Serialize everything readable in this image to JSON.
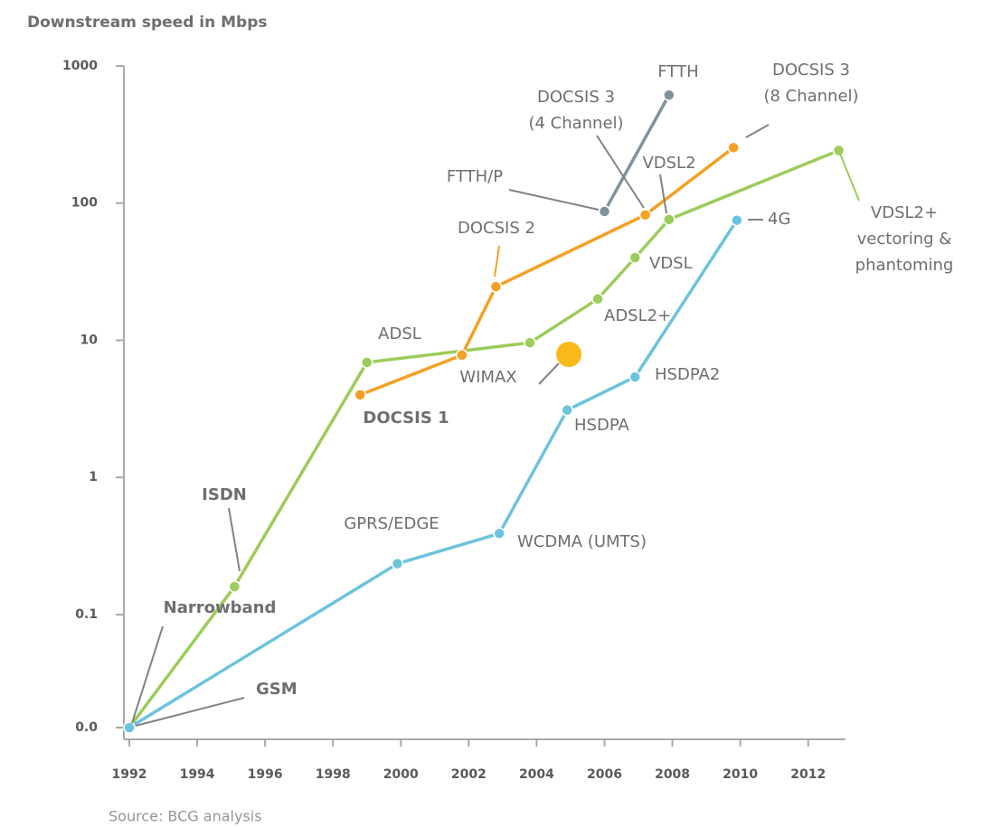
{
  "chart_data": {
    "type": "line",
    "title": "Downstream speed in Mbps",
    "source": "Source: BCG analysis",
    "yscale": "log",
    "xlim": [
      1992,
      2013.1
    ],
    "ylim": [
      0.015,
      1000
    ],
    "xticks": [
      1992,
      1994,
      1996,
      1998,
      2000,
      2002,
      2004,
      2006,
      2008,
      2010,
      2012
    ],
    "yticks": [
      {
        "value": 0.015,
        "label": "0.0"
      },
      0.1,
      1,
      10,
      100,
      1000
    ],
    "series": [
      {
        "color": "#9ccc5a",
        "x": [
          1992,
          1995.1,
          1999,
          2003.8,
          2005.8,
          2006.9,
          2007.9,
          2012.9
        ],
        "values": [
          0.015,
          0.16,
          6.9,
          9.6,
          20,
          40,
          76,
          242
        ]
      },
      {
        "color": "#f5a024",
        "x": [
          1998.8,
          2001.8,
          2002.8,
          2007.2,
          2009.8
        ],
        "values": [
          4,
          7.8,
          24.6,
          82,
          254
        ]
      },
      {
        "color": "#7f939c",
        "x": [
          2006,
          2007.9
        ],
        "values": [
          87,
          614
        ]
      },
      {
        "color": "#6cc3dc",
        "x": [
          1992,
          1999.9,
          2002.9,
          2004.9,
          2006.9,
          2009.9
        ],
        "values": [
          0.015,
          0.235,
          0.39,
          3.1,
          5.4,
          75
        ]
      }
    ],
    "bubble": {
      "color": "#f9b919",
      "x": 2004.95,
      "value": 7.9
    },
    "annotations": [
      {
        "lines": [
          "FTTH"
        ]
      },
      {
        "lines": [
          "DOCSIS 3",
          "(4 Channel)"
        ]
      },
      {
        "lines": [
          "DOCSIS 3",
          "(8 Channel)"
        ]
      },
      {
        "lines": [
          "FTTH/P"
        ]
      },
      {
        "lines": [
          "VDSL2"
        ]
      },
      {
        "lines": [
          "DOCSIS 2"
        ]
      },
      {
        "lines": [
          "4G"
        ]
      },
      {
        "lines": [
          "VDSL2+",
          "vectoring &",
          "phantoming"
        ]
      },
      {
        "lines": [
          "VDSL"
        ]
      },
      {
        "lines": [
          "ADSL2+"
        ]
      },
      {
        "lines": [
          "ADSL"
        ]
      },
      {
        "lines": [
          "WIMAX"
        ]
      },
      {
        "lines": [
          "HSDPA2"
        ]
      },
      {
        "lines": [
          "DOCSIS 1"
        ]
      },
      {
        "lines": [
          "HSDPA"
        ]
      },
      {
        "lines": [
          "ISDN"
        ]
      },
      {
        "lines": [
          "GPRS/EDGE"
        ]
      },
      {
        "lines": [
          "WCDMA (UMTS)"
        ]
      },
      {
        "lines": [
          "Narrowband"
        ]
      },
      {
        "lines": [
          "GSM"
        ]
      }
    ]
  }
}
